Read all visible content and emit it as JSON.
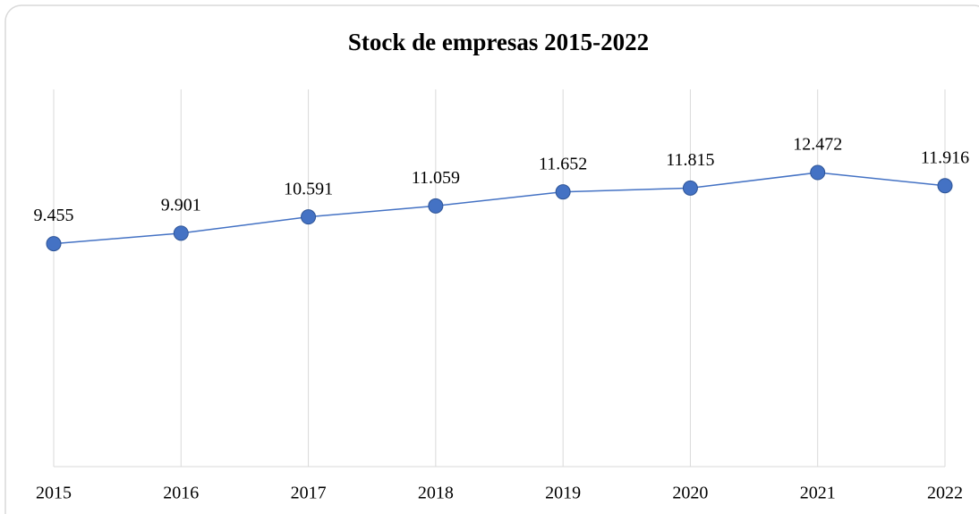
{
  "chart_data": {
    "type": "line",
    "title": "Stock de empresas 2015-2022",
    "categories": [
      "2015",
      "2016",
      "2017",
      "2018",
      "2019",
      "2020",
      "2021",
      "2022"
    ],
    "series": [
      {
        "color": "#4472c4",
        "values": [
          9455,
          9901,
          10591,
          11059,
          11652,
          11815,
          12472,
          11916
        ],
        "value_labels": [
          "9.455",
          "9.901",
          "10.591",
          "11.059",
          "11.652",
          "11.815",
          "12.472",
          "11.916"
        ]
      }
    ],
    "ylim": [
      0,
      16000
    ],
    "grid": true
  }
}
